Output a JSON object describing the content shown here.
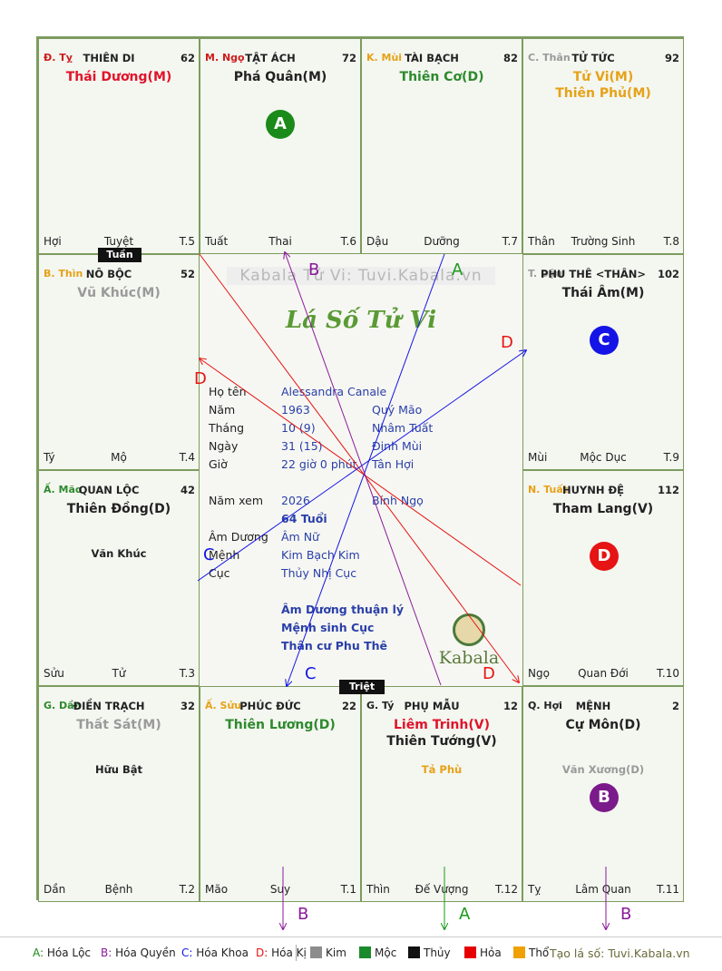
{
  "cells": [
    {
      "branch": "Đ. Tỵ",
      "branch_color": "#cc1d1d",
      "palace": "THIÊN DI",
      "age": "62",
      "majors": [
        {
          "text": "Thái Dương(M)",
          "color": "#e0142a"
        }
      ],
      "minors": [],
      "bottom_left": "Hợi",
      "bottom_center": "Tuyệt",
      "bottom_right": "T.5"
    },
    {
      "branch": "M. Ngọ",
      "branch_color": "#cc1d1d",
      "palace": "TẬT ÁCH",
      "age": "72",
      "majors": [
        {
          "text": "Phá Quân(M)",
          "color": "#222222"
        }
      ],
      "minors": [],
      "badge": "A",
      "bottom_left": "Tuất",
      "bottom_center": "Thai",
      "bottom_right": "T.6"
    },
    {
      "branch": "K. Mùi",
      "branch_color": "#e6a217",
      "palace": "TÀI BẠCH",
      "age": "82",
      "majors": [
        {
          "text": "Thiên Cơ(D)",
          "color": "#2d8a2d"
        }
      ],
      "minors": [],
      "bottom_left": "Dậu",
      "bottom_center": "Dưỡng",
      "bottom_right": "T.7"
    },
    {
      "branch": "C. Thân",
      "branch_color": "#9a9a9a",
      "palace": "TỬ TỨC",
      "age": "92",
      "majors": [
        {
          "text": "Tử Vi(M)",
          "color": "#e6a217"
        },
        {
          "text": "Thiên Phủ(M)",
          "color": "#e6a217"
        }
      ],
      "minors": [],
      "bottom_left": "Thân",
      "bottom_center": "Trường Sinh",
      "bottom_right": "T.8"
    },
    {
      "branch": "B. Thìn",
      "branch_color": "#e6a217",
      "palace": "NÔ BỘC",
      "age": "52",
      "majors": [
        {
          "text": "Vũ Khúc(M)",
          "color": "#9a9a9a"
        }
      ],
      "minors": [],
      "bottom_left": "Tý",
      "bottom_center": "Mộ",
      "bottom_right": "T.4"
    },
    {
      "branch": "T. Dậu",
      "branch_color": "#9a9a9a",
      "palace": "PHU THÊ <THÂN>",
      "age": "102",
      "majors": [
        {
          "text": "Thái Âm(M)",
          "color": "#222222"
        }
      ],
      "minors": [],
      "badge": "C",
      "bottom_left": "Mùi",
      "bottom_center": "Mộc Dục",
      "bottom_right": "T.9"
    },
    {
      "branch": "Ấ. Mão",
      "branch_color": "#2d8a2d",
      "palace": "QUAN LỘC",
      "age": "42",
      "majors": [
        {
          "text": "Thiên Đồng(D)",
          "color": "#222222"
        }
      ],
      "minors": [
        {
          "text": "Văn Khúc",
          "color": "#222222"
        }
      ],
      "bottom_left": "Sửu",
      "bottom_center": "Tử",
      "bottom_right": "T.3"
    },
    {
      "branch": "N. Tuất",
      "branch_color": "#e6a217",
      "palace": "HUYNH ĐỆ",
      "age": "112",
      "majors": [
        {
          "text": "Tham Lang(V)",
          "color": "#222222"
        }
      ],
      "minors": [],
      "badge": "D",
      "bottom_left": "Ngọ",
      "bottom_center": "Quan Đới",
      "bottom_right": "T.10"
    },
    {
      "branch": "G. Dần",
      "branch_color": "#2d8a2d",
      "palace": "ĐIỀN TRẠCH",
      "age": "32",
      "majors": [
        {
          "text": "Thất Sát(M)",
          "color": "#9a9a9a"
        }
      ],
      "minors": [
        {
          "text": "Hữu Bật",
          "color": "#222222"
        }
      ],
      "bottom_left": "Dần",
      "bottom_center": "Bệnh",
      "bottom_right": "T.2"
    },
    {
      "branch": "Ấ. Sửu",
      "branch_color": "#e6a217",
      "palace": "PHÚC ĐỨC",
      "age": "22",
      "majors": [
        {
          "text": "Thiên Lương(D)",
          "color": "#2d8a2d"
        }
      ],
      "minors": [],
      "bottom_left": "Mão",
      "bottom_center": "Suy",
      "bottom_right": "T.1"
    },
    {
      "branch": "G. Tý",
      "branch_color": "#222222",
      "palace": "PHỤ MẪU",
      "age": "12",
      "majors": [
        {
          "text": "Liêm Trinh(V)",
          "color": "#e0142a"
        },
        {
          "text": "Thiên Tướng(V)",
          "color": "#222222"
        }
      ],
      "minors": [
        {
          "text": "Tả Phù",
          "color": "#e6a217"
        }
      ],
      "bottom_left": "Thìn",
      "bottom_center": "Đế Vượng",
      "bottom_right": "T.12"
    },
    {
      "branch": "Q. Hợi",
      "branch_color": "#222222",
      "palace": "MỆNH",
      "age": "2",
      "majors": [
        {
          "text": "Cự Môn(D)",
          "color": "#222222"
        }
      ],
      "minors": [
        {
          "text": "Văn Xương(D)",
          "color": "#9a9a9a"
        }
      ],
      "badge": "B",
      "bottom_left": "Tỵ",
      "bottom_center": "Lâm Quan",
      "bottom_right": "T.11"
    }
  ],
  "badges": {
    "A": {
      "color": "#1a8a1a"
    },
    "B": {
      "color": "#7b1a8a"
    },
    "C": {
      "color": "#1414e6"
    },
    "D": {
      "color": "#e61414"
    }
  },
  "tags": {
    "tuan": "Tuần",
    "triet": "Triệt"
  },
  "center": {
    "watermark": "Kabala Tử Vi: Tuvi.Kabala.vn",
    "title": "Lá Số Tử Vi",
    "logo_text": "Kabala",
    "rows": [
      {
        "k": "Họ tên",
        "v": "Alessandra Canale",
        "v2": ""
      },
      {
        "k": "Năm",
        "v": "1963",
        "v2": "Quý Mão"
      },
      {
        "k": "Tháng",
        "v": "10  (9)",
        "v2": "Nhâm Tuất"
      },
      {
        "k": "Ngày",
        "v": "31  (15)",
        "v2": "Đinh Mùi"
      },
      {
        "k": "Giờ",
        "v": "22 giờ 0 phút",
        "v2": "Tân Hợi"
      },
      {
        "k": "Năm xem",
        "v": "2026",
        "v2": "Bính Ngọ"
      },
      {
        "k": "",
        "v": "64 Tuổi",
        "v2": ""
      },
      {
        "k": "Âm Dương",
        "v": "Âm Nữ",
        "v2": ""
      },
      {
        "k": "Mệnh",
        "v": "Kim Bạch Kim",
        "v2": ""
      },
      {
        "k": "Cục",
        "v": "Thủy Nhị Cục",
        "v2": ""
      }
    ],
    "notes": [
      "Âm Dương thuận lý",
      "Mệnh sinh Cục",
      "Thân cư Phu Thê"
    ]
  },
  "arrow_labels": {
    "top": [
      {
        "t": "B",
        "c": "#8a1a9a"
      },
      {
        "t": "A",
        "c": "#1a9a1a"
      },
      {
        "t": "D",
        "c": "#e61414"
      },
      {
        "t": "D",
        "c": "#e61414"
      }
    ],
    "mid": [
      {
        "t": "C",
        "c": "#1414e6"
      },
      {
        "t": "C",
        "c": "#1414e6"
      },
      {
        "t": "D",
        "c": "#e61414"
      }
    ],
    "bottom": [
      {
        "t": "B",
        "c": "#8a1a9a"
      },
      {
        "t": "A",
        "c": "#1a9a1a"
      },
      {
        "t": "B",
        "c": "#8a1a9a"
      }
    ]
  },
  "legend": {
    "transforms": [
      {
        "k": "A",
        "c": "#1a8a1a",
        "t": "Hóa Lộc"
      },
      {
        "k": "B",
        "c": "#8a1a9a",
        "t": "Hóa Quyền"
      },
      {
        "k": "C",
        "c": "#1414e6",
        "t": "Hóa Khoa"
      },
      {
        "k": "D",
        "c": "#e61414",
        "t": "Hóa Kị"
      }
    ],
    "elements": [
      {
        "t": "Kim",
        "c": "#8c8c8c"
      },
      {
        "t": "Mộc",
        "c": "#1a8a2a"
      },
      {
        "t": "Thủy",
        "c": "#111111"
      },
      {
        "t": "Hỏa",
        "c": "#e60000"
      },
      {
        "t": "Thổ",
        "c": "#f0a000"
      }
    ],
    "credit": "Tạo lá số: Tuvi.Kabala.vn"
  }
}
